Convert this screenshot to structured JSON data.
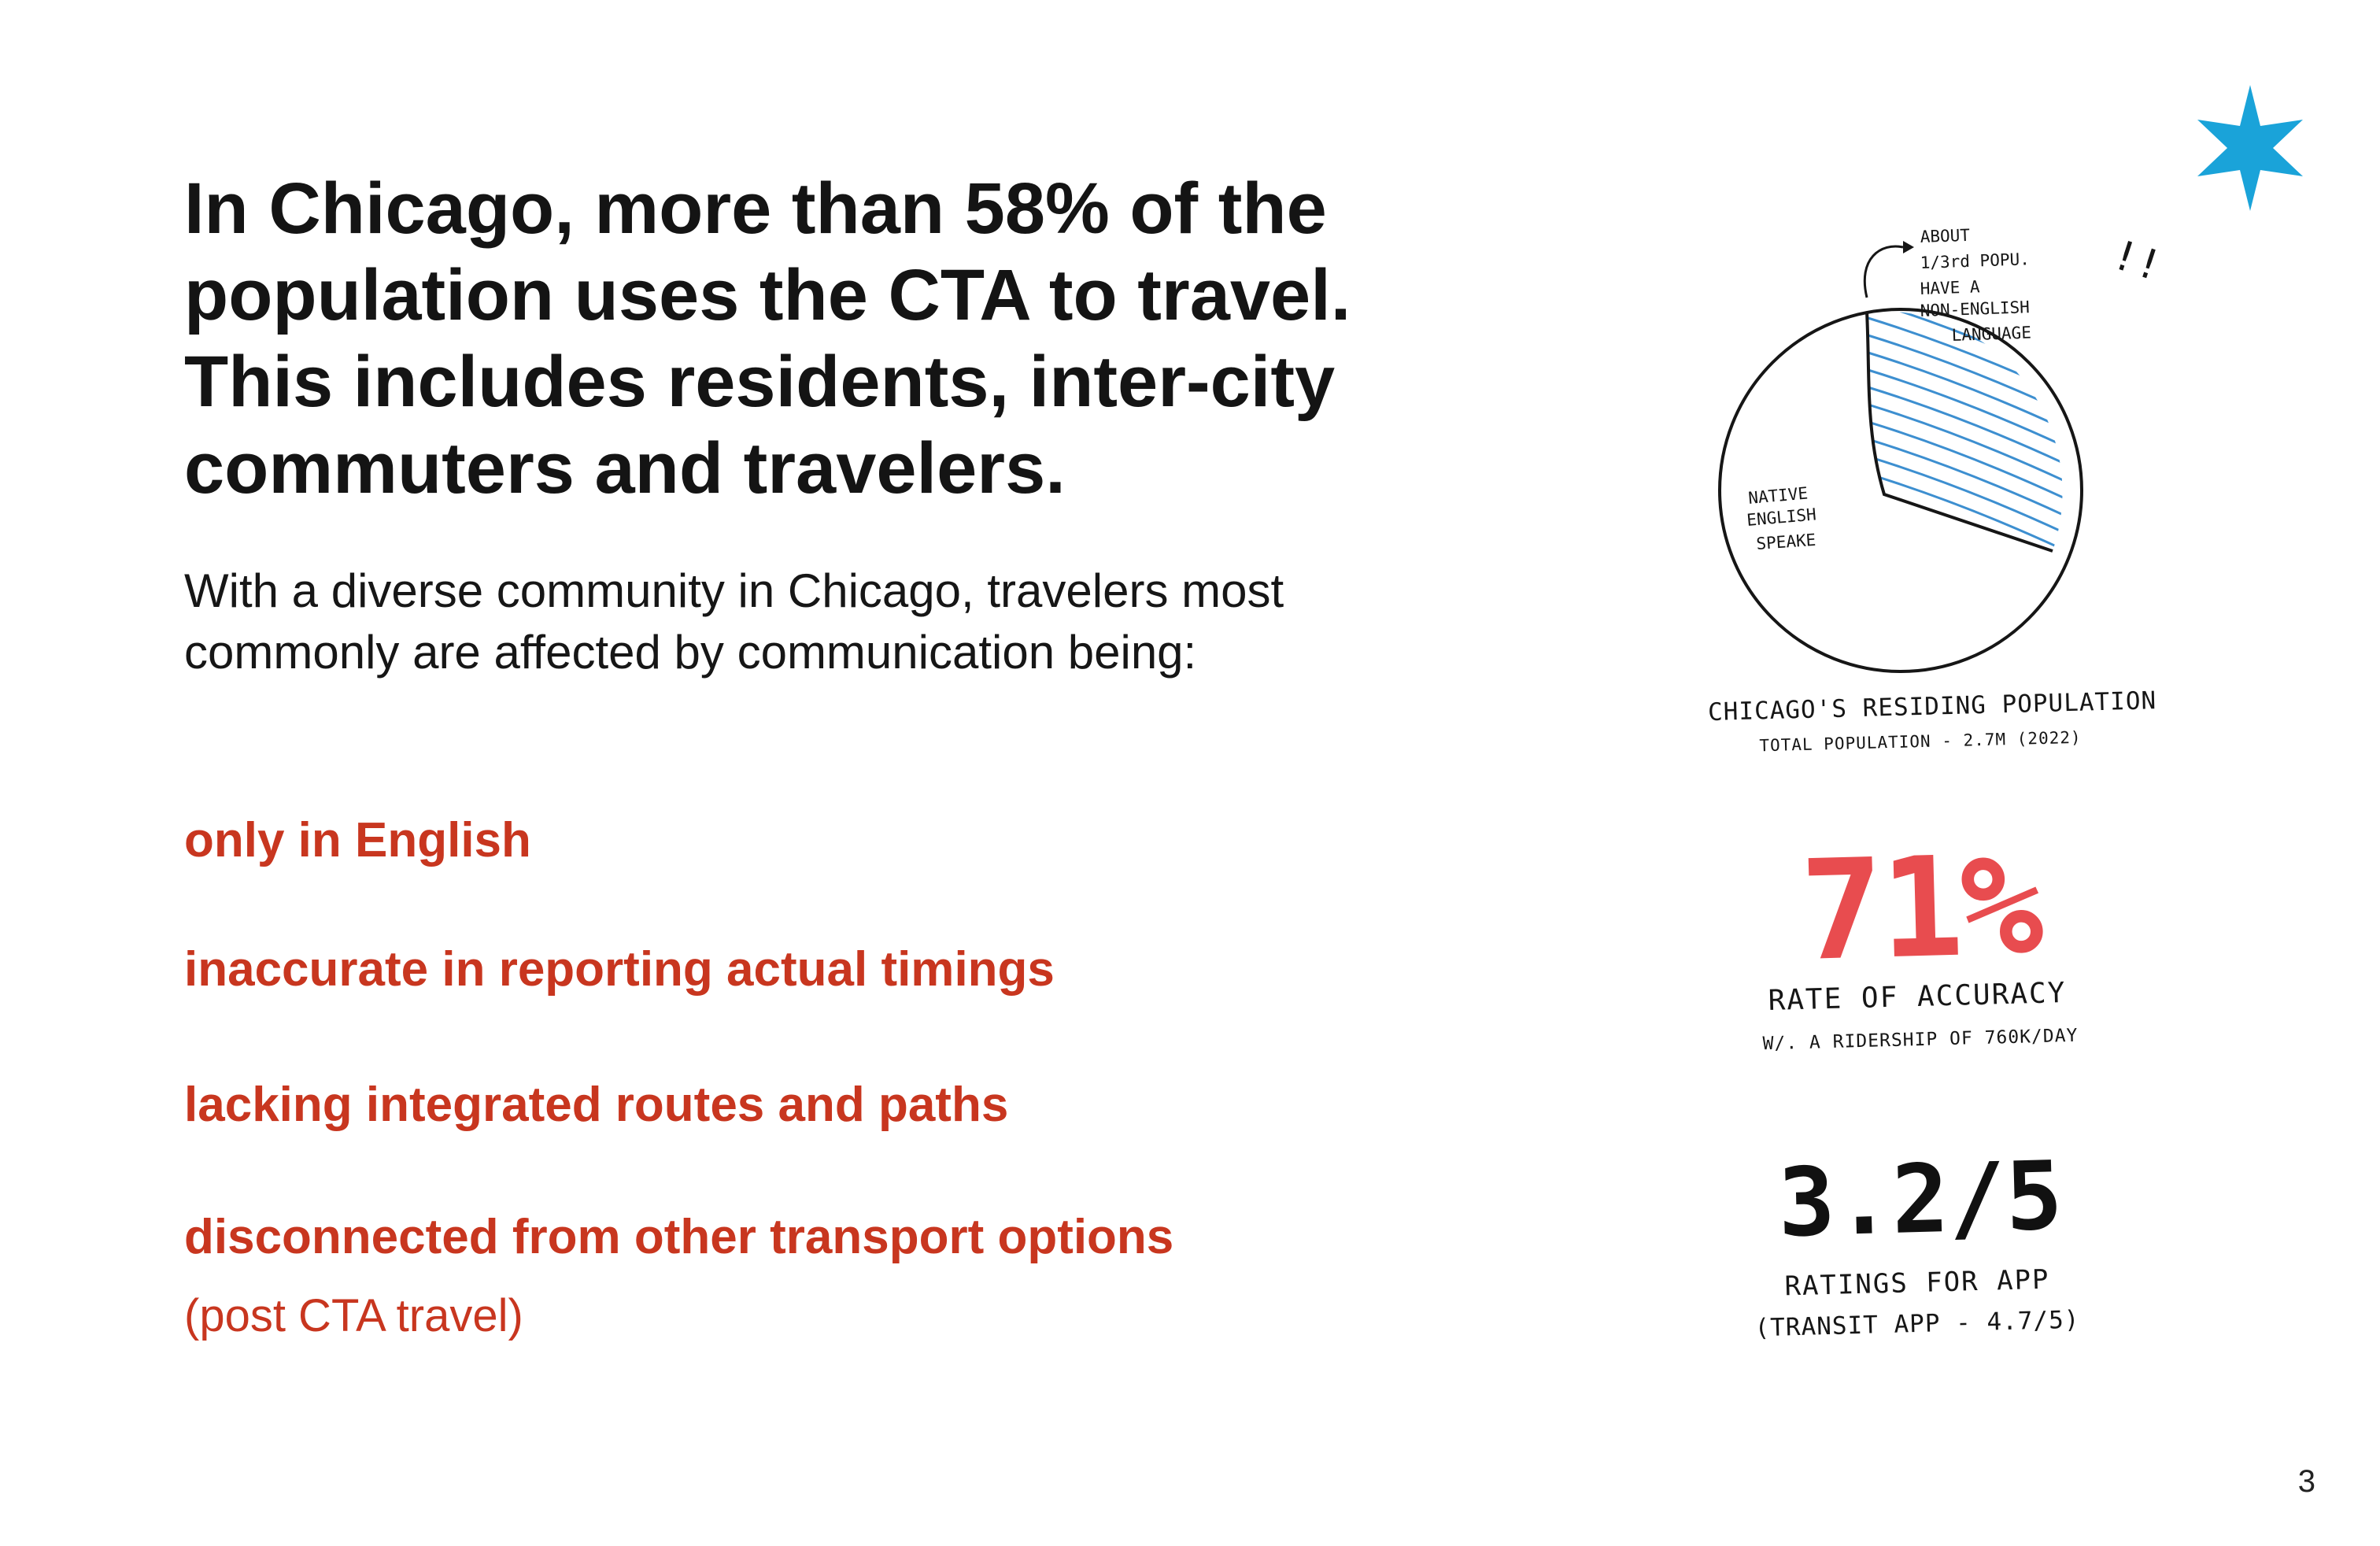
{
  "headline": {
    "lines": [
      "In Chicago, more than 58% of the",
      "population uses the CTA to travel.",
      "This includes residents, inter-city",
      "commuters and travelers."
    ]
  },
  "intro": {
    "lines": [
      "With a diverse community in Chicago, travelers most",
      "commonly are affected by communication being:"
    ]
  },
  "issues": [
    "only in English",
    "inaccurate in reporting actual timings",
    "lacking integrated routes and paths",
    "disconnected from other transport options"
  ],
  "issue_note": "(post CTA travel)",
  "pie": {
    "annotation_lines": [
      "ABOUT",
      "1/3rd POPU.",
      "HAVE A",
      "NON-ENGLISH",
      "LANGUAGE"
    ],
    "annotation_marks": "!!",
    "native_label_lines": [
      "NATIVE",
      "ENGLISH",
      "SPEAKE"
    ],
    "caption": "CHICAGO'S RESIDING POPULATION",
    "subcaption": "TOTAL POPULATION - 2.7M (2022)"
  },
  "chart_data": {
    "type": "pie",
    "slices": [
      {
        "label": "NON-ENGLISH LANGUAGE",
        "value": 0.333,
        "pattern": "hatched"
      },
      {
        "label": "NATIVE ENGLISH SPEAKE",
        "value": 0.667,
        "pattern": "none"
      }
    ],
    "hatch_color": "#3d8fd0"
  },
  "stats": {
    "accuracy": {
      "value": "71%",
      "label": "RATE OF ACCURACY",
      "sub": "W/. A RIDERSHIP OF 760K/DAY"
    },
    "rating": {
      "value": "3.2/5",
      "label": "RATINGS FOR APP",
      "sub": "(TRANSIT APP - 4.7/5)"
    }
  },
  "page_number": "3",
  "colors": {
    "accent_red": "#c8361f",
    "stat_red": "#e84c4f",
    "star_blue": "#1aa3d9",
    "text": "#141414"
  },
  "icons": {
    "star": "chicago-six-point-star-icon"
  }
}
